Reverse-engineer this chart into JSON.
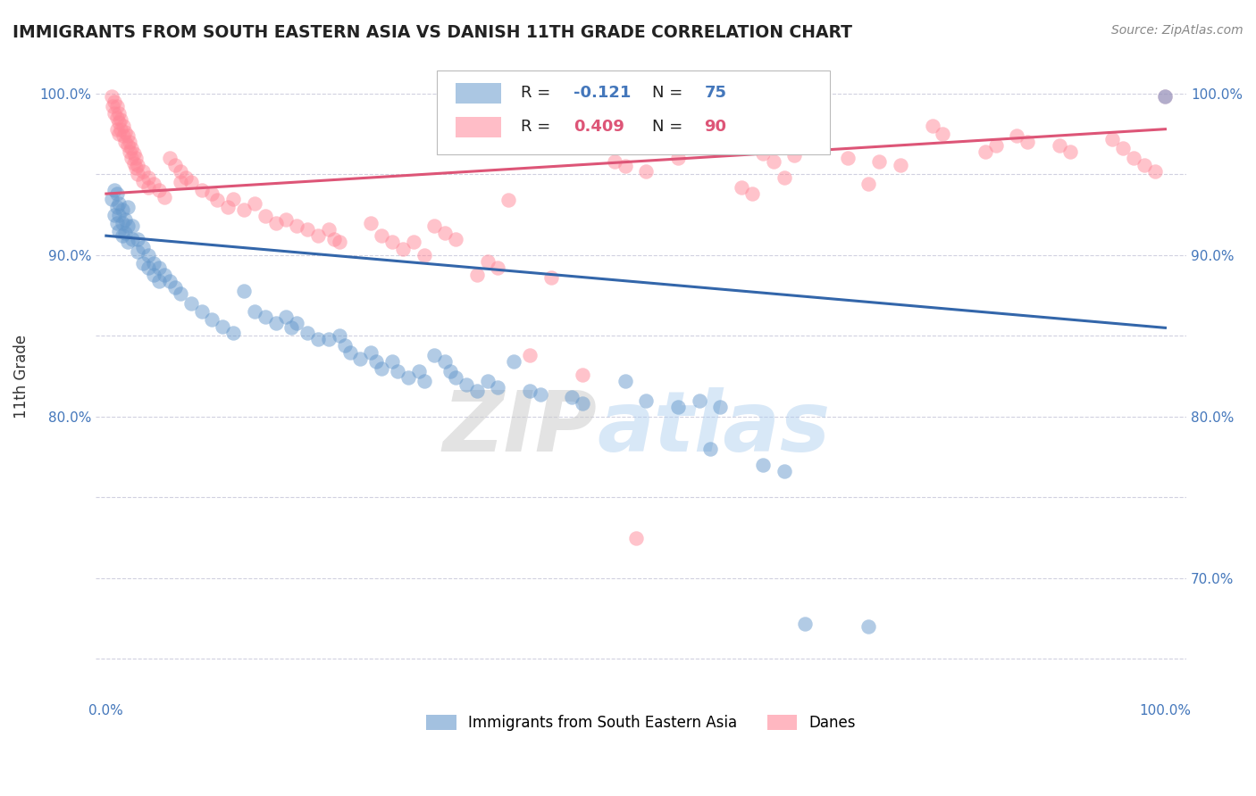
{
  "title": "IMMIGRANTS FROM SOUTH EASTERN ASIA VS DANISH 11TH GRADE CORRELATION CHART",
  "source": "Source: ZipAtlas.com",
  "ylabel": "11th Grade",
  "R_blue": -0.121,
  "N_blue": 75,
  "R_pink": 0.409,
  "N_pink": 90,
  "blue_color": "#6699CC",
  "pink_color": "#FF8899",
  "trend_blue_color": "#3366AA",
  "trend_pink_color": "#DD5577",
  "watermark_zip": "ZIP",
  "watermark_atlas": "atlas",
  "legend_blue_label": "Immigrants from South Eastern Asia",
  "legend_pink_label": "Danes",
  "xlim": [
    -0.01,
    1.02
  ],
  "ylim": [
    0.625,
    1.025
  ],
  "x_tick_positions": [
    0.0,
    0.2,
    0.4,
    0.6,
    0.8,
    1.0
  ],
  "x_tick_labels": [
    "0.0%",
    "",
    "",
    "",
    "",
    "100.0%"
  ],
  "y_tick_positions": [
    0.65,
    0.7,
    0.75,
    0.8,
    0.85,
    0.9,
    0.95,
    1.0
  ],
  "y_tick_labels_left": [
    "",
    "",
    "",
    "80.0%",
    "",
    "90.0%",
    "",
    "100.0%"
  ],
  "y_tick_labels_right": [
    "",
    "70.0%",
    "",
    "80.0%",
    "",
    "90.0%",
    "",
    "100.0%"
  ],
  "blue_trend_x": [
    0.0,
    1.0
  ],
  "blue_trend_y": [
    0.912,
    0.855
  ],
  "pink_trend_x": [
    0.0,
    1.0
  ],
  "pink_trend_y": [
    0.938,
    0.978
  ],
  "blue_scatter": [
    [
      0.005,
      0.935
    ],
    [
      0.008,
      0.94
    ],
    [
      0.008,
      0.925
    ],
    [
      0.01,
      0.938
    ],
    [
      0.01,
      0.93
    ],
    [
      0.01,
      0.92
    ],
    [
      0.012,
      0.932
    ],
    [
      0.012,
      0.925
    ],
    [
      0.012,
      0.915
    ],
    [
      0.015,
      0.928
    ],
    [
      0.015,
      0.92
    ],
    [
      0.015,
      0.912
    ],
    [
      0.018,
      0.922
    ],
    [
      0.018,
      0.914
    ],
    [
      0.02,
      0.93
    ],
    [
      0.02,
      0.918
    ],
    [
      0.02,
      0.908
    ],
    [
      0.025,
      0.918
    ],
    [
      0.025,
      0.91
    ],
    [
      0.03,
      0.91
    ],
    [
      0.03,
      0.902
    ],
    [
      0.035,
      0.905
    ],
    [
      0.035,
      0.895
    ],
    [
      0.04,
      0.9
    ],
    [
      0.04,
      0.892
    ],
    [
      0.045,
      0.895
    ],
    [
      0.045,
      0.888
    ],
    [
      0.05,
      0.892
    ],
    [
      0.05,
      0.884
    ],
    [
      0.055,
      0.888
    ],
    [
      0.06,
      0.884
    ],
    [
      0.065,
      0.88
    ],
    [
      0.07,
      0.876
    ],
    [
      0.08,
      0.87
    ],
    [
      0.09,
      0.865
    ],
    [
      0.1,
      0.86
    ],
    [
      0.11,
      0.856
    ],
    [
      0.12,
      0.852
    ],
    [
      0.13,
      0.878
    ],
    [
      0.14,
      0.865
    ],
    [
      0.15,
      0.862
    ],
    [
      0.16,
      0.858
    ],
    [
      0.17,
      0.862
    ],
    [
      0.175,
      0.855
    ],
    [
      0.18,
      0.858
    ],
    [
      0.19,
      0.852
    ],
    [
      0.2,
      0.848
    ],
    [
      0.21,
      0.848
    ],
    [
      0.22,
      0.85
    ],
    [
      0.225,
      0.844
    ],
    [
      0.23,
      0.84
    ],
    [
      0.24,
      0.836
    ],
    [
      0.25,
      0.84
    ],
    [
      0.255,
      0.834
    ],
    [
      0.26,
      0.83
    ],
    [
      0.27,
      0.834
    ],
    [
      0.275,
      0.828
    ],
    [
      0.285,
      0.824
    ],
    [
      0.295,
      0.828
    ],
    [
      0.3,
      0.822
    ],
    [
      0.31,
      0.838
    ],
    [
      0.32,
      0.834
    ],
    [
      0.325,
      0.828
    ],
    [
      0.33,
      0.824
    ],
    [
      0.34,
      0.82
    ],
    [
      0.35,
      0.816
    ],
    [
      0.36,
      0.822
    ],
    [
      0.37,
      0.818
    ],
    [
      0.385,
      0.834
    ],
    [
      0.4,
      0.816
    ],
    [
      0.41,
      0.814
    ],
    [
      0.44,
      0.812
    ],
    [
      0.45,
      0.808
    ],
    [
      0.49,
      0.822
    ],
    [
      0.51,
      0.81
    ],
    [
      0.54,
      0.806
    ],
    [
      0.56,
      0.81
    ],
    [
      0.57,
      0.78
    ],
    [
      0.58,
      0.806
    ],
    [
      0.62,
      0.77
    ],
    [
      0.64,
      0.766
    ],
    [
      0.66,
      0.672
    ],
    [
      0.72,
      0.67
    ],
    [
      1.0,
      0.998
    ]
  ],
  "pink_scatter": [
    [
      0.005,
      0.998
    ],
    [
      0.006,
      0.992
    ],
    [
      0.008,
      0.995
    ],
    [
      0.008,
      0.988
    ],
    [
      0.01,
      0.992
    ],
    [
      0.01,
      0.985
    ],
    [
      0.01,
      0.978
    ],
    [
      0.012,
      0.988
    ],
    [
      0.012,
      0.982
    ],
    [
      0.012,
      0.975
    ],
    [
      0.014,
      0.984
    ],
    [
      0.014,
      0.978
    ],
    [
      0.016,
      0.98
    ],
    [
      0.016,
      0.974
    ],
    [
      0.018,
      0.976
    ],
    [
      0.018,
      0.97
    ],
    [
      0.02,
      0.974
    ],
    [
      0.02,
      0.968
    ],
    [
      0.022,
      0.97
    ],
    [
      0.022,
      0.964
    ],
    [
      0.024,
      0.966
    ],
    [
      0.024,
      0.96
    ],
    [
      0.026,
      0.963
    ],
    [
      0.026,
      0.957
    ],
    [
      0.028,
      0.96
    ],
    [
      0.028,
      0.954
    ],
    [
      0.03,
      0.956
    ],
    [
      0.03,
      0.95
    ],
    [
      0.035,
      0.952
    ],
    [
      0.035,
      0.946
    ],
    [
      0.04,
      0.948
    ],
    [
      0.04,
      0.942
    ],
    [
      0.045,
      0.944
    ],
    [
      0.05,
      0.94
    ],
    [
      0.055,
      0.936
    ],
    [
      0.06,
      0.96
    ],
    [
      0.065,
      0.956
    ],
    [
      0.07,
      0.952
    ],
    [
      0.07,
      0.945
    ],
    [
      0.075,
      0.948
    ],
    [
      0.08,
      0.945
    ],
    [
      0.09,
      0.94
    ],
    [
      0.1,
      0.938
    ],
    [
      0.105,
      0.934
    ],
    [
      0.115,
      0.93
    ],
    [
      0.12,
      0.935
    ],
    [
      0.13,
      0.928
    ],
    [
      0.14,
      0.932
    ],
    [
      0.15,
      0.924
    ],
    [
      0.16,
      0.92
    ],
    [
      0.17,
      0.922
    ],
    [
      0.18,
      0.918
    ],
    [
      0.19,
      0.916
    ],
    [
      0.2,
      0.912
    ],
    [
      0.21,
      0.916
    ],
    [
      0.215,
      0.91
    ],
    [
      0.22,
      0.908
    ],
    [
      0.25,
      0.92
    ],
    [
      0.26,
      0.912
    ],
    [
      0.27,
      0.908
    ],
    [
      0.28,
      0.904
    ],
    [
      0.29,
      0.908
    ],
    [
      0.3,
      0.9
    ],
    [
      0.31,
      0.918
    ],
    [
      0.32,
      0.914
    ],
    [
      0.33,
      0.91
    ],
    [
      0.35,
      0.888
    ],
    [
      0.36,
      0.896
    ],
    [
      0.37,
      0.892
    ],
    [
      0.38,
      0.934
    ],
    [
      0.4,
      0.838
    ],
    [
      0.42,
      0.886
    ],
    [
      0.48,
      0.958
    ],
    [
      0.49,
      0.955
    ],
    [
      0.51,
      0.952
    ],
    [
      0.54,
      0.96
    ],
    [
      0.6,
      0.942
    ],
    [
      0.61,
      0.938
    ],
    [
      0.62,
      0.963
    ],
    [
      0.63,
      0.958
    ],
    [
      0.64,
      0.948
    ],
    [
      0.65,
      0.962
    ],
    [
      0.7,
      0.96
    ],
    [
      0.72,
      0.944
    ],
    [
      0.73,
      0.958
    ],
    [
      0.75,
      0.956
    ],
    [
      0.78,
      0.98
    ],
    [
      0.79,
      0.975
    ],
    [
      0.83,
      0.964
    ],
    [
      0.84,
      0.968
    ],
    [
      0.86,
      0.974
    ],
    [
      0.87,
      0.97
    ],
    [
      0.9,
      0.968
    ],
    [
      0.91,
      0.964
    ],
    [
      0.95,
      0.972
    ],
    [
      0.96,
      0.966
    ],
    [
      0.97,
      0.96
    ],
    [
      0.98,
      0.956
    ],
    [
      0.99,
      0.952
    ],
    [
      1.0,
      0.998
    ],
    [
      0.45,
      0.826
    ],
    [
      0.5,
      0.725
    ]
  ]
}
